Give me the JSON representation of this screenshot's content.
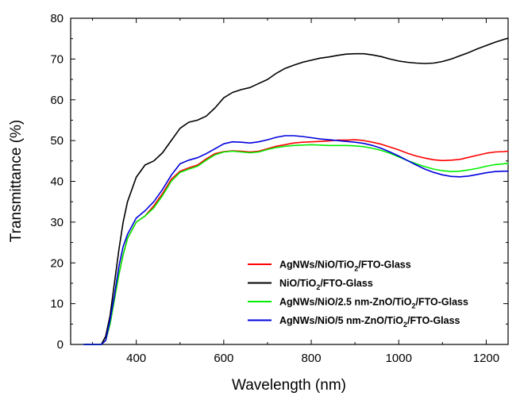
{
  "chart_data": {
    "type": "line",
    "xlabel": "Wavelength (nm)",
    "ylabel": "Transmittance (%)",
    "xlim": [
      250,
      1250
    ],
    "ylim": [
      0,
      80
    ],
    "xticks": [
      400,
      600,
      800,
      1000,
      1200
    ],
    "yticks": [
      0,
      10,
      20,
      30,
      40,
      50,
      60,
      70,
      80
    ],
    "grid": false,
    "legend_position": "bottom-right",
    "series": [
      {
        "name": "AgNWs/NiO/TiO2/FTO-Glass",
        "label_parts": [
          "AgNWs/NiO/TiO",
          "2",
          "/FTO-Glass"
        ],
        "color": "#ff0000",
        "x": [
          280,
          300,
          320,
          330,
          340,
          350,
          360,
          370,
          380,
          400,
          420,
          440,
          460,
          480,
          500,
          520,
          540,
          560,
          580,
          600,
          620,
          640,
          660,
          680,
          700,
          720,
          740,
          760,
          780,
          800,
          820,
          840,
          860,
          880,
          900,
          920,
          940,
          960,
          980,
          1000,
          1020,
          1040,
          1060,
          1080,
          1100,
          1120,
          1140,
          1160,
          1180,
          1200,
          1220,
          1240,
          1250
        ],
        "y": [
          0,
          0,
          0,
          1,
          5,
          11,
          17,
          22,
          26,
          30,
          31.5,
          34,
          37,
          40.5,
          42.5,
          43.3,
          44,
          45.5,
          46.8,
          47.3,
          47.5,
          47.4,
          47.2,
          47.4,
          48,
          48.6,
          49,
          49.4,
          49.6,
          49.7,
          49.8,
          49.9,
          50.1,
          50.1,
          50.2,
          50,
          49.6,
          49.1,
          48.4,
          47.7,
          46.9,
          46.2,
          45.7,
          45.3,
          45.1,
          45.2,
          45.4,
          45.9,
          46.4,
          46.9,
          47.2,
          47.3,
          47.4
        ]
      },
      {
        "name": "NiO/TiO2/FTO-Glass",
        "label_parts": [
          "NiO/TiO",
          "2",
          "/FTO-Glass"
        ],
        "color": "#000000",
        "x": [
          280,
          300,
          320,
          330,
          340,
          350,
          360,
          370,
          380,
          400,
          420,
          440,
          460,
          480,
          500,
          520,
          540,
          560,
          580,
          600,
          620,
          640,
          660,
          680,
          700,
          720,
          740,
          760,
          780,
          800,
          820,
          840,
          860,
          880,
          900,
          920,
          940,
          960,
          980,
          1000,
          1020,
          1040,
          1060,
          1080,
          1100,
          1120,
          1140,
          1160,
          1180,
          1200,
          1220,
          1240,
          1250
        ],
        "y": [
          0,
          0,
          0,
          2,
          7,
          15,
          23,
          30,
          35,
          41,
          44,
          45,
          47,
          50,
          53,
          54.5,
          55,
          56,
          58,
          60.5,
          61.8,
          62.5,
          63,
          64,
          65,
          66.5,
          67.7,
          68.5,
          69.2,
          69.7,
          70.2,
          70.5,
          70.9,
          71.2,
          71.3,
          71.3,
          71,
          70.6,
          70,
          69.5,
          69.2,
          69,
          68.9,
          69,
          69.4,
          70,
          70.8,
          71.6,
          72.5,
          73.3,
          74.1,
          74.8,
          75.1
        ]
      },
      {
        "name": "AgNWs/NiO/2.5 nm-ZnO/TiO2/FTO-Glass",
        "label_parts": [
          "AgNWs/NiO/2.5 nm-ZnO/TiO",
          "2",
          "/FTO-Glass"
        ],
        "color": "#00ee00",
        "x": [
          280,
          300,
          320,
          330,
          340,
          350,
          360,
          370,
          380,
          400,
          420,
          440,
          460,
          480,
          500,
          520,
          540,
          560,
          580,
          600,
          620,
          640,
          660,
          680,
          700,
          720,
          740,
          760,
          780,
          800,
          820,
          840,
          860,
          880,
          900,
          920,
          940,
          960,
          980,
          1000,
          1020,
          1040,
          1060,
          1080,
          1100,
          1120,
          1140,
          1160,
          1180,
          1200,
          1220,
          1240,
          1250
        ],
        "y": [
          0,
          0,
          0,
          1,
          5,
          11,
          17,
          22,
          26,
          30,
          31.5,
          33.5,
          36.5,
          40,
          42.2,
          43,
          43.7,
          45.2,
          46.5,
          47.2,
          47.4,
          47.2,
          47,
          47.2,
          47.8,
          48.3,
          48.6,
          48.8,
          48.9,
          49,
          48.9,
          48.8,
          48.8,
          48.8,
          48.7,
          48.5,
          48.1,
          47.6,
          46.9,
          46,
          45.1,
          44.3,
          43.6,
          43,
          42.6,
          42.4,
          42.5,
          42.8,
          43.2,
          43.7,
          44.1,
          44.3,
          44.4
        ]
      },
      {
        "name": "AgNWs/NiO/5 nm-ZnO/TiO2/FTO-Glass",
        "label_parts": [
          "AgNWs/NiO/5 nm-ZnO/TiO",
          "2",
          "/FTO-Glass"
        ],
        "color": "#0000dd",
        "x": [
          280,
          300,
          320,
          330,
          340,
          350,
          360,
          370,
          380,
          400,
          420,
          440,
          460,
          480,
          500,
          520,
          540,
          560,
          580,
          600,
          620,
          640,
          660,
          680,
          700,
          720,
          740,
          760,
          780,
          800,
          820,
          840,
          860,
          880,
          900,
          920,
          940,
          960,
          980,
          1000,
          1020,
          1040,
          1060,
          1080,
          1100,
          1120,
          1140,
          1160,
          1180,
          1200,
          1220,
          1240,
          1250
        ],
        "y": [
          0,
          0,
          0,
          1,
          6,
          12,
          19,
          24,
          27,
          31,
          32.8,
          35,
          38,
          41.5,
          44.3,
          45.2,
          45.8,
          46.8,
          48,
          49.2,
          49.7,
          49.6,
          49.4,
          49.7,
          50.2,
          50.8,
          51.2,
          51.2,
          51,
          50.7,
          50.4,
          50.2,
          50,
          49.8,
          49.6,
          49.3,
          48.8,
          48.1,
          47.2,
          46.2,
          45.1,
          44,
          43,
          42.2,
          41.6,
          41.2,
          41.1,
          41.3,
          41.7,
          42.1,
          42.4,
          42.5,
          42.5
        ]
      }
    ]
  }
}
